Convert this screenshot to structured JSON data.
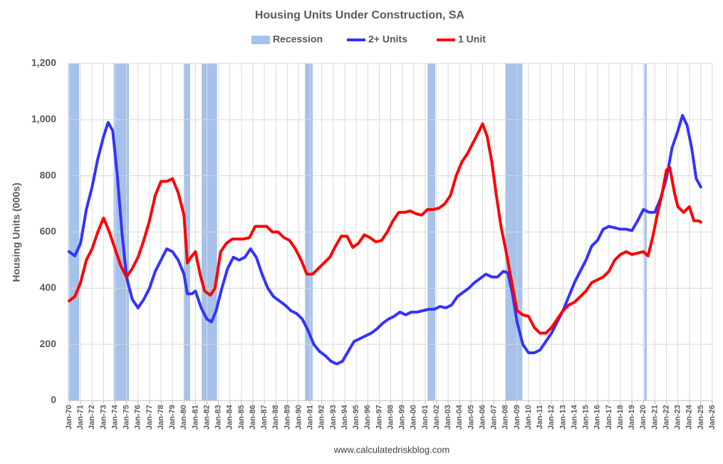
{
  "chart_data": {
    "type": "line",
    "title": "Housing Units Under Construction, SA",
    "y_label": "Housing Units (000s)",
    "source": "www.calculatedriskblog.com",
    "grid": true,
    "legend": "top",
    "xlim": [
      1970,
      2026
    ],
    "ylim": [
      0,
      1200
    ],
    "yticks": [
      0,
      200,
      400,
      600,
      800,
      {
        "value": 1000,
        "label": "1,000"
      },
      {
        "value": 1200,
        "label": "1,200"
      }
    ],
    "xticks": [
      {
        "value": 1970,
        "label": "Jan-70"
      },
      {
        "value": 1971,
        "label": "Jan-71"
      },
      {
        "value": 1972,
        "label": "Jan-72"
      },
      {
        "value": 1973,
        "label": "Jan-73"
      },
      {
        "value": 1974,
        "label": "Jan-74"
      },
      {
        "value": 1975,
        "label": "Jan-75"
      },
      {
        "value": 1976,
        "label": "Jan-76"
      },
      {
        "value": 1977,
        "label": "Jan-77"
      },
      {
        "value": 1978,
        "label": "Jan-78"
      },
      {
        "value": 1979,
        "label": "Jan-79"
      },
      {
        "value": 1980,
        "label": "Jan-80"
      },
      {
        "value": 1981,
        "label": "Jan-81"
      },
      {
        "value": 1982,
        "label": "Jan-82"
      },
      {
        "value": 1983,
        "label": "Jan-83"
      },
      {
        "value": 1984,
        "label": "Jan-84"
      },
      {
        "value": 1985,
        "label": "Jan-85"
      },
      {
        "value": 1986,
        "label": "Jan-86"
      },
      {
        "value": 1987,
        "label": "Jan-87"
      },
      {
        "value": 1988,
        "label": "Jan-88"
      },
      {
        "value": 1989,
        "label": "Jan-89"
      },
      {
        "value": 1990,
        "label": "Jan-90"
      },
      {
        "value": 1991,
        "label": "Jan-91"
      },
      {
        "value": 1992,
        "label": "Jan-92"
      },
      {
        "value": 1993,
        "label": "Jan-93"
      },
      {
        "value": 1994,
        "label": "Jan-94"
      },
      {
        "value": 1995,
        "label": "Jan-95"
      },
      {
        "value": 1996,
        "label": "Jan-96"
      },
      {
        "value": 1997,
        "label": "Jan-97"
      },
      {
        "value": 1998,
        "label": "Jan-98"
      },
      {
        "value": 1999,
        "label": "Jan-99"
      },
      {
        "value": 2000,
        "label": "Jan-00"
      },
      {
        "value": 2001,
        "label": "Jan-01"
      },
      {
        "value": 2002,
        "label": "Jan-02"
      },
      {
        "value": 2003,
        "label": "Jan-03"
      },
      {
        "value": 2004,
        "label": "Jan-04"
      },
      {
        "value": 2005,
        "label": "Jan-05"
      },
      {
        "value": 2006,
        "label": "Jan-06"
      },
      {
        "value": 2007,
        "label": "Jan-07"
      },
      {
        "value": 2008,
        "label": "Jan-08"
      },
      {
        "value": 2009,
        "label": "Jan-09"
      },
      {
        "value": 2010,
        "label": "Jan-10"
      },
      {
        "value": 2011,
        "label": "Jan-11"
      },
      {
        "value": 2012,
        "label": "Jan-12"
      },
      {
        "value": 2013,
        "label": "Jan-13"
      },
      {
        "value": 2014,
        "label": "Jan-14"
      },
      {
        "value": 2015,
        "label": "Jan-15"
      },
      {
        "value": 2016,
        "label": "Jan-16"
      },
      {
        "value": 2017,
        "label": "Jan-17"
      },
      {
        "value": 2018,
        "label": "Jan-18"
      },
      {
        "value": 2019,
        "label": "Jan-19"
      },
      {
        "value": 2020,
        "label": "Jan-20"
      },
      {
        "value": 2021,
        "label": "Jan-21"
      },
      {
        "value": 2022,
        "label": "Jan-22"
      },
      {
        "value": 2023,
        "label": "Jan-23"
      },
      {
        "value": 2024,
        "label": "Jan-24"
      },
      {
        "value": 2025,
        "label": "Jan-25"
      },
      {
        "value": 2026,
        "label": "Jan-26"
      }
    ],
    "recessions": {
      "name": "Recession",
      "color": "#a6c2ea",
      "periods": [
        [
          1969.92,
          1970.88
        ],
        [
          1973.88,
          1975.21
        ],
        [
          1980.0,
          1980.54
        ],
        [
          1981.54,
          1982.88
        ],
        [
          1990.54,
          1991.21
        ],
        [
          2001.21,
          2001.88
        ],
        [
          2007.96,
          2009.46
        ],
        [
          2020.08,
          2020.29
        ]
      ]
    },
    "series": [
      {
        "name": "2+ Units",
        "color": "#3333ff",
        "x": [
          1970.0,
          1970.5,
          1971.0,
          1971.5,
          1972.0,
          1972.5,
          1973.0,
          1973.4,
          1973.8,
          1974.2,
          1974.6,
          1975.0,
          1975.5,
          1976.0,
          1976.5,
          1977.0,
          1977.5,
          1978.0,
          1978.5,
          1979.0,
          1979.5,
          1980.0,
          1980.3,
          1980.7,
          1981.0,
          1981.5,
          1982.0,
          1982.4,
          1982.8,
          1983.3,
          1983.8,
          1984.3,
          1984.8,
          1985.3,
          1985.8,
          1986.3,
          1986.8,
          1987.3,
          1987.8,
          1988.3,
          1988.8,
          1989.3,
          1989.8,
          1990.3,
          1990.8,
          1991.3,
          1991.8,
          1992.3,
          1992.8,
          1993.3,
          1993.8,
          1994.3,
          1994.8,
          1995.3,
          1995.8,
          1996.3,
          1996.8,
          1997.3,
          1997.8,
          1998.3,
          1998.8,
          1999.3,
          1999.8,
          2000.3,
          2000.8,
          2001.3,
          2001.8,
          2002.3,
          2002.8,
          2003.3,
          2003.8,
          2004.3,
          2004.8,
          2005.3,
          2005.8,
          2006.3,
          2006.8,
          2007.3,
          2007.8,
          2008.2,
          2008.6,
          2009.0,
          2009.5,
          2010.0,
          2010.5,
          2011.0,
          2011.5,
          2012.0,
          2012.5,
          2013.0,
          2013.5,
          2014.0,
          2014.5,
          2015.0,
          2015.5,
          2016.0,
          2016.5,
          2017.0,
          2017.5,
          2018.0,
          2018.5,
          2019.0,
          2019.5,
          2020.0,
          2020.5,
          2021.0,
          2021.5,
          2022.0,
          2022.5,
          2023.0,
          2023.4,
          2023.8,
          2024.2,
          2024.6,
          2025.0
        ],
        "values": [
          530,
          515,
          560,
          680,
          760,
          860,
          940,
          990,
          960,
          800,
          600,
          440,
          360,
          330,
          360,
          400,
          460,
          500,
          540,
          530,
          500,
          450,
          380,
          380,
          390,
          330,
          290,
          280,
          320,
          400,
          470,
          510,
          500,
          510,
          540,
          510,
          450,
          400,
          370,
          355,
          340,
          320,
          310,
          290,
          250,
          200,
          175,
          160,
          140,
          130,
          140,
          175,
          210,
          220,
          230,
          240,
          255,
          275,
          290,
          300,
          315,
          305,
          315,
          315,
          320,
          325,
          325,
          335,
          330,
          340,
          370,
          385,
          400,
          420,
          435,
          450,
          440,
          440,
          460,
          455,
          380,
          280,
          200,
          170,
          170,
          180,
          210,
          240,
          280,
          320,
          370,
          420,
          460,
          500,
          550,
          570,
          610,
          620,
          615,
          610,
          610,
          605,
          640,
          680,
          670,
          670,
          720,
          790,
          900,
          960,
          1015,
          980,
          900,
          790,
          760
        ]
      },
      {
        "name": "1 Unit",
        "color": "#ff0000",
        "x": [
          1970.0,
          1970.5,
          1971.0,
          1971.5,
          1972.0,
          1972.5,
          1973.0,
          1973.5,
          1974.0,
          1974.5,
          1975.0,
          1975.5,
          1976.0,
          1976.5,
          1977.0,
          1977.5,
          1978.0,
          1978.5,
          1979.0,
          1979.5,
          1980.0,
          1980.3,
          1980.6,
          1981.0,
          1981.4,
          1981.8,
          1982.3,
          1982.7,
          1983.2,
          1983.7,
          1984.2,
          1984.7,
          1985.2,
          1985.7,
          1986.2,
          1986.7,
          1987.2,
          1987.7,
          1988.2,
          1988.7,
          1989.2,
          1989.7,
          1990.2,
          1990.7,
          1991.2,
          1991.7,
          1992.2,
          1992.7,
          1993.2,
          1993.7,
          1994.2,
          1994.7,
          1995.2,
          1995.7,
          1996.2,
          1996.7,
          1997.2,
          1997.7,
          1998.2,
          1998.7,
          1999.2,
          1999.7,
          2000.2,
          2000.7,
          2001.2,
          2001.7,
          2002.2,
          2002.7,
          2003.2,
          2003.7,
          2004.2,
          2004.7,
          2005.2,
          2005.7,
          2006.0,
          2006.4,
          2006.8,
          2007.2,
          2007.6,
          2008.0,
          2008.5,
          2009.0,
          2009.5,
          2010.0,
          2010.5,
          2011.0,
          2011.5,
          2012.0,
          2012.5,
          2013.0,
          2013.5,
          2014.0,
          2014.5,
          2015.0,
          2015.5,
          2016.0,
          2016.5,
          2017.0,
          2017.5,
          2018.0,
          2018.5,
          2019.0,
          2019.5,
          2020.0,
          2020.4,
          2020.8,
          2021.2,
          2021.6,
          2022.0,
          2022.3,
          2022.7,
          2023.0,
          2023.5,
          2024.0,
          2024.4,
          2024.8,
          2025.0
        ],
        "values": [
          355,
          370,
          420,
          500,
          540,
          600,
          650,
          600,
          540,
          480,
          440,
          470,
          510,
          570,
          640,
          730,
          780,
          780,
          790,
          740,
          660,
          490,
          510,
          530,
          450,
          390,
          375,
          400,
          530,
          560,
          575,
          575,
          575,
          580,
          620,
          620,
          620,
          600,
          600,
          580,
          570,
          540,
          500,
          450,
          450,
          470,
          490,
          510,
          550,
          585,
          585,
          545,
          560,
          590,
          580,
          565,
          570,
          600,
          640,
          670,
          670,
          675,
          665,
          660,
          680,
          680,
          685,
          700,
          730,
          800,
          850,
          880,
          920,
          960,
          985,
          940,
          850,
          730,
          620,
          540,
          430,
          320,
          305,
          300,
          260,
          240,
          240,
          260,
          290,
          320,
          340,
          350,
          370,
          390,
          420,
          430,
          440,
          460,
          500,
          520,
          530,
          520,
          525,
          530,
          515,
          580,
          660,
          730,
          820,
          830,
          740,
          690,
          670,
          690,
          640,
          640,
          635
        ]
      }
    ]
  }
}
